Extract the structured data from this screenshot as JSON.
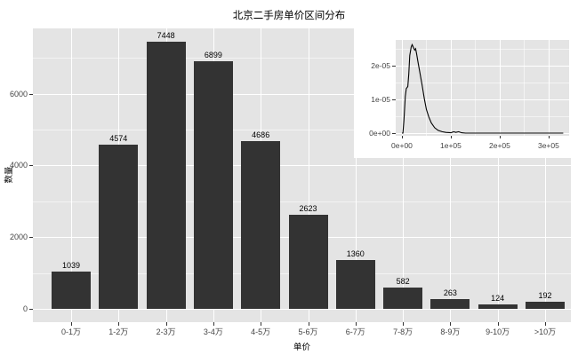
{
  "figure": {
    "background": "#FFFFFF"
  },
  "chart_data": [
    {
      "type": "bar",
      "title": "北京二手房单价区间分布",
      "xlabel": "单价",
      "ylabel": "数量",
      "categories": [
        "0-1万",
        "1-2万",
        "2-3万",
        "3-4万",
        "4-5万",
        "5-6万",
        "6-7万",
        "7-8万",
        "8-9万",
        "9-10万",
        ">10万"
      ],
      "values": [
        1039,
        4574,
        7448,
        6899,
        4686,
        2623,
        1360,
        582,
        263,
        124,
        192
      ],
      "bar_value_labels": [
        "1039",
        "4574",
        "7448",
        "6899",
        "4686",
        "2623",
        "1360",
        "582",
        "263",
        "124",
        "192"
      ],
      "yticks": [
        0,
        2000,
        4000,
        6000
      ],
      "ytick_labels": [
        "0",
        "2000",
        "4000",
        "6000"
      ],
      "yticks_minor": [
        1000,
        3000,
        5000,
        7000
      ],
      "ylim": [
        -372,
        7820
      ],
      "grid": "white major+minor on grey panel",
      "legend": false,
      "colors": {
        "bar": "#333333",
        "panel": "#E4E4E4",
        "grid_major": "#FFFFFF",
        "axis_text": "#444444",
        "tick_mark": "#333333",
        "title_text": "#000000"
      }
    },
    {
      "type": "line",
      "subtype": "density-inset",
      "title": "",
      "xlabel": "",
      "ylabel": "",
      "xticks": [
        0,
        100000,
        200000,
        300000
      ],
      "xtick_labels": [
        "0e+00",
        "1e+05",
        "2e+05",
        "3e+05"
      ],
      "xticks_minor": [
        50000,
        150000,
        250000
      ],
      "yticks": [
        0,
        1e-05,
        2e-05
      ],
      "ytick_labels": [
        "0e+00",
        "1e-05",
        "2e-05"
      ],
      "yticks_minor": [
        5e-06,
        1.5e-05,
        2.5e-05
      ],
      "xlim": [
        -12700,
        342000
      ],
      "ylim": [
        -8e-07,
        2.76e-05
      ],
      "line_color": "#000000",
      "panel_color": "#E4E4E4",
      "points": [
        [
          0,
          0
        ],
        [
          2000,
          0
        ],
        [
          4000,
          3.5e-06
        ],
        [
          6000,
          8.5e-06
        ],
        [
          7000,
          1.09e-05
        ],
        [
          9000,
          1.32e-05
        ],
        [
          12000,
          1.38e-05
        ],
        [
          14000,
          1.75e-05
        ],
        [
          16000,
          2.3e-05
        ],
        [
          19000,
          2.55e-05
        ],
        [
          21000,
          2.62e-05
        ],
        [
          24000,
          2.52e-05
        ],
        [
          26000,
          2.46e-05
        ],
        [
          28000,
          2.5e-05
        ],
        [
          30000,
          2.35e-05
        ],
        [
          33000,
          2.1e-05
        ],
        [
          36000,
          1.85e-05
        ],
        [
          41000,
          1.45e-05
        ],
        [
          46000,
          1e-05
        ],
        [
          50000,
          7e-06
        ],
        [
          55000,
          4.8e-06
        ],
        [
          60000,
          3e-06
        ],
        [
          67000,
          1.6e-06
        ],
        [
          74000,
          8e-07
        ],
        [
          82000,
          4e-07
        ],
        [
          90000,
          2e-07
        ],
        [
          100000,
          1e-07
        ],
        [
          106000,
          4e-07
        ],
        [
          110000,
          2e-07
        ],
        [
          116000,
          4e-07
        ],
        [
          122000,
          1e-07
        ],
        [
          130000,
          0
        ],
        [
          200000,
          0
        ],
        [
          330000,
          0
        ]
      ]
    }
  ]
}
